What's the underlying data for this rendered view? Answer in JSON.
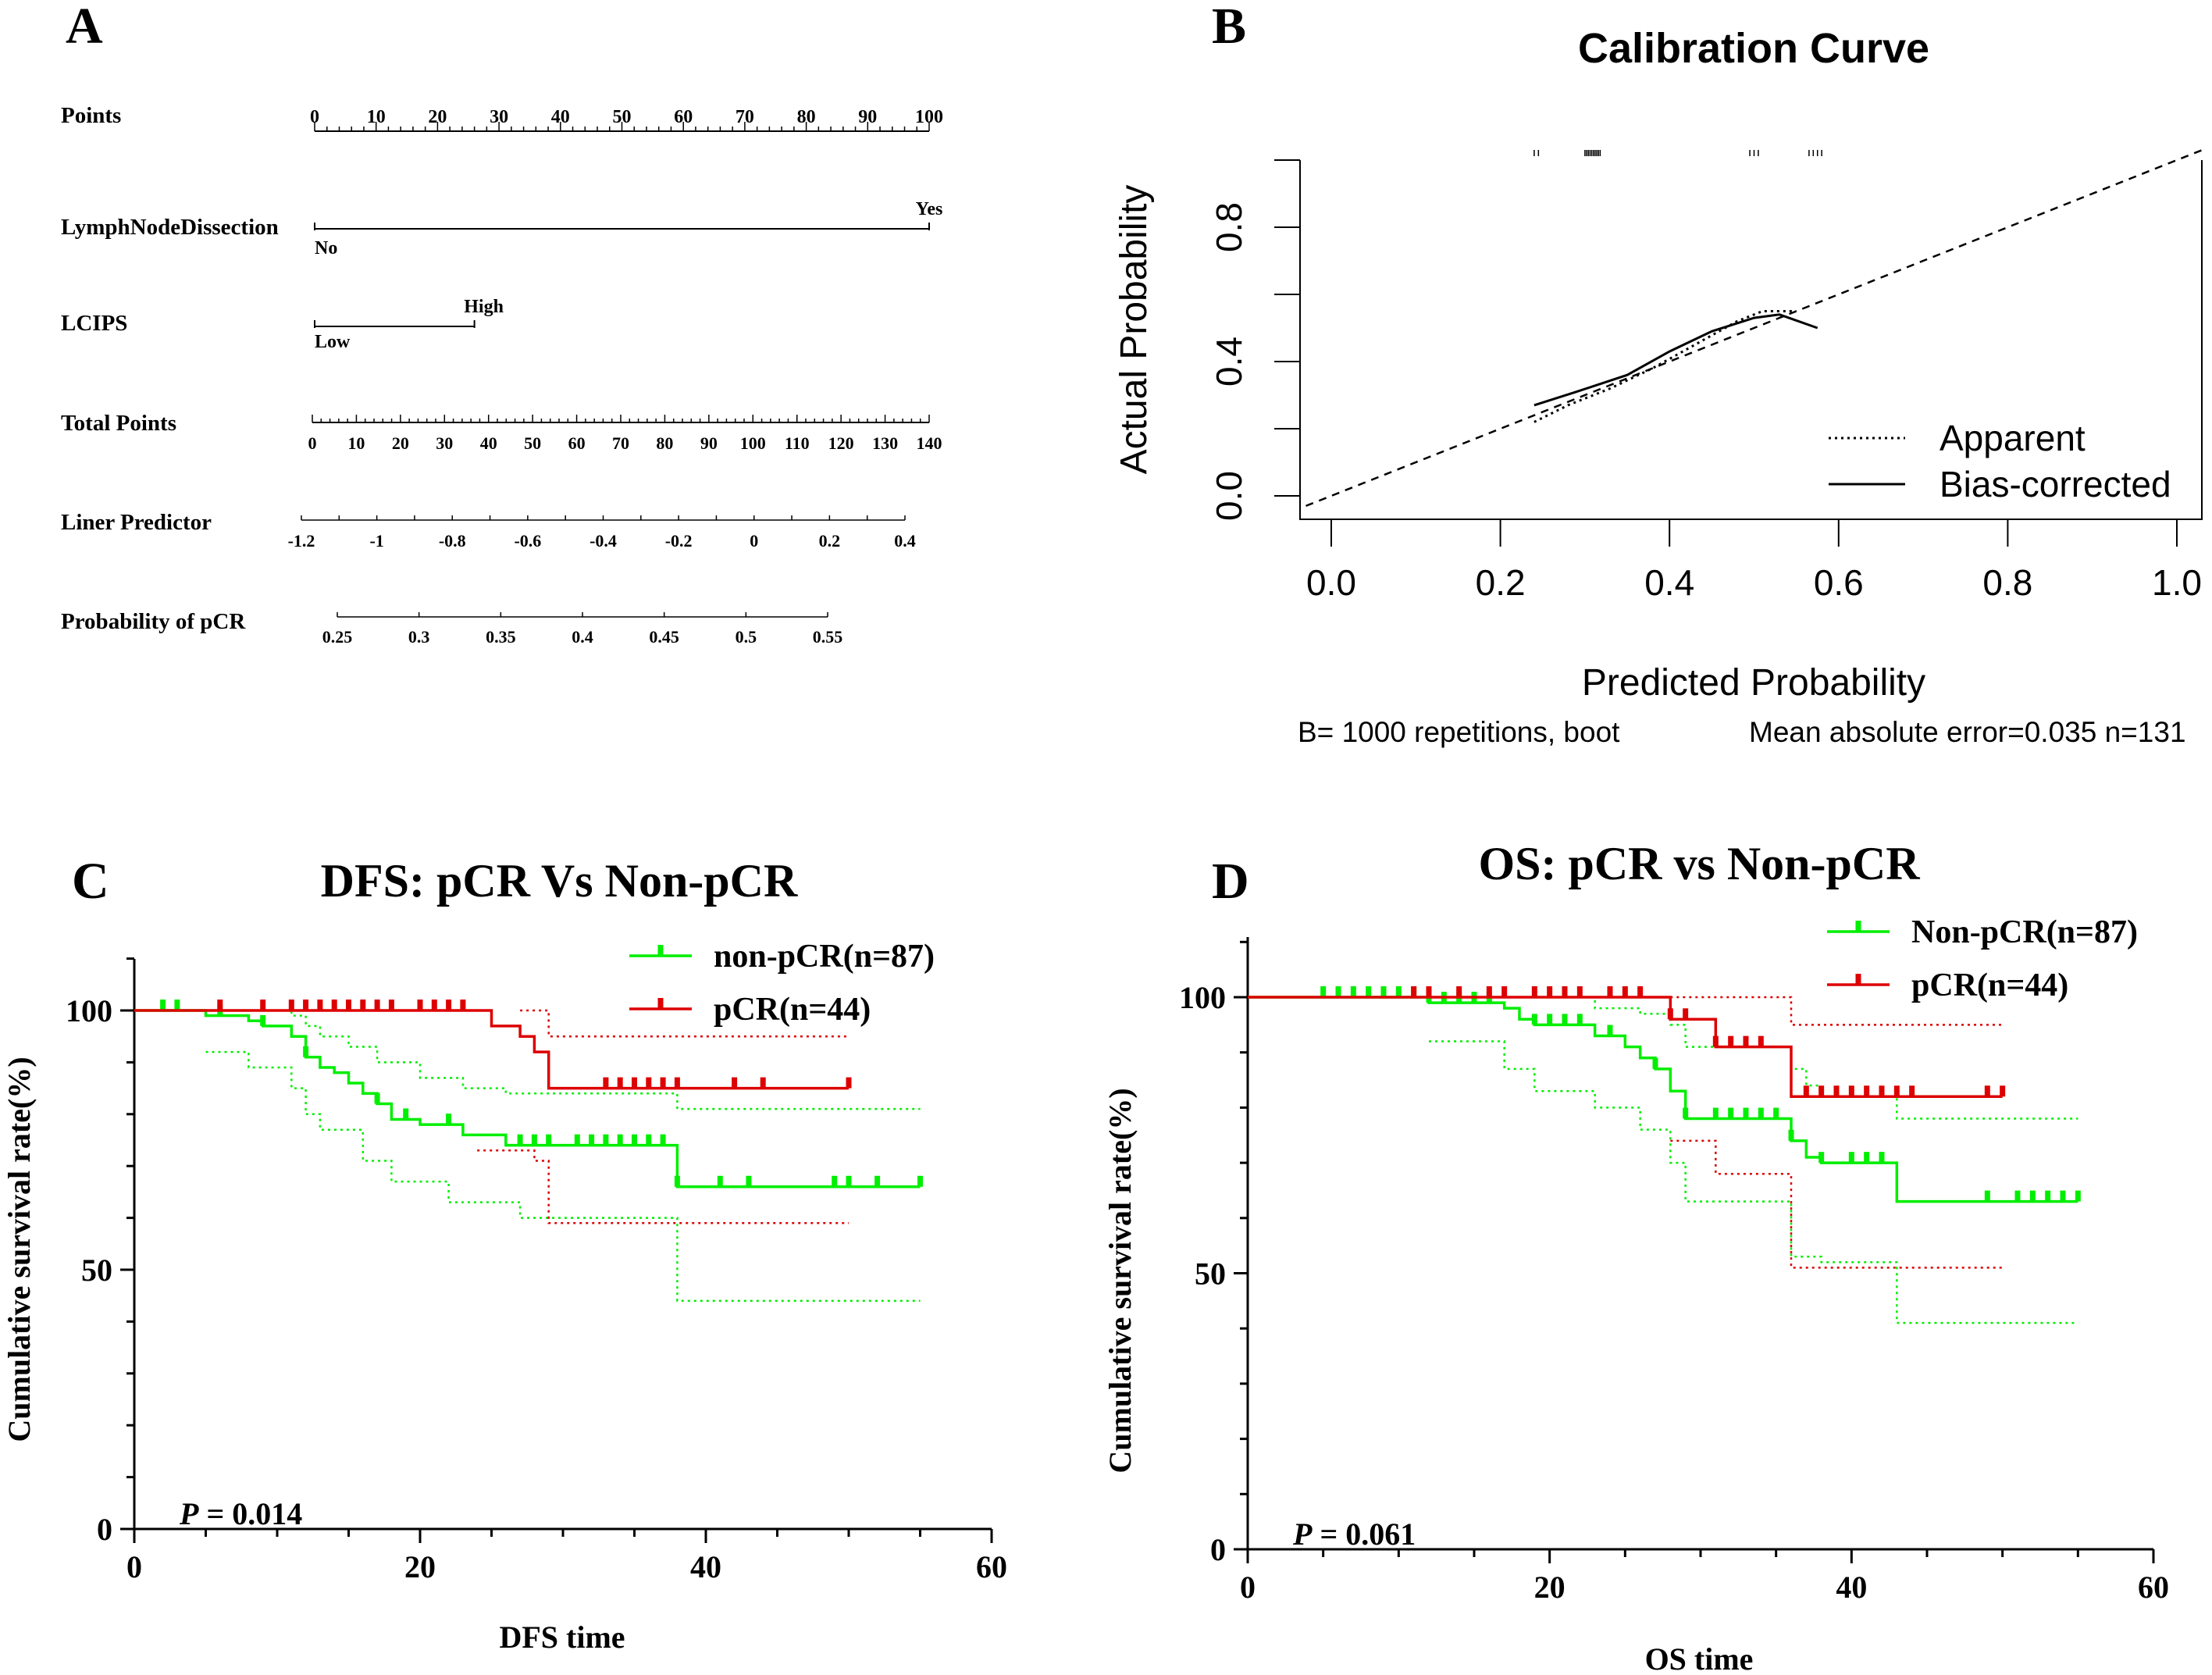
{
  "panels": {
    "A": {
      "letter": "A"
    },
    "B": {
      "letter": "B"
    },
    "C": {
      "letter": "C"
    },
    "D": {
      "letter": "D"
    }
  },
  "chart_data": [
    {
      "id": "A",
      "type": "nomogram",
      "rows": [
        {
          "label": "Points",
          "scale": "points",
          "ticks": [
            "0",
            "10",
            "20",
            "30",
            "40",
            "50",
            "60",
            "70",
            "80",
            "90",
            "100"
          ]
        },
        {
          "label": "LymphNodeDissection",
          "levels": [
            {
              "text": "No",
              "points": 0
            },
            {
              "text": "Yes",
              "points": 100
            }
          ]
        },
        {
          "label": "LCIPS",
          "levels": [
            {
              "text": "Low",
              "points": 0
            },
            {
              "text": "High",
              "points": 26
            }
          ]
        },
        {
          "label": "Total Points",
          "scale": "total",
          "ticks": [
            "0",
            "10",
            "20",
            "30",
            "40",
            "50",
            "60",
            "70",
            "80",
            "90",
            "100",
            "110",
            "120",
            "130",
            "140"
          ]
        },
        {
          "label": "Liner Predictor",
          "ticks": [
            "-1.2",
            "-1",
            "-0.8",
            "-0.6",
            "-0.4",
            "-0.2",
            "0",
            "0.2",
            "0.4"
          ],
          "tick_values": [
            -1.2,
            -1,
            -0.8,
            -0.6,
            -0.4,
            -0.2,
            0,
            0.2,
            0.4
          ]
        },
        {
          "label": "Probability of pCR",
          "ticks": [
            "0.25",
            "0.3",
            "0.35",
            "0.4",
            "0.45",
            "0.5",
            "0.55"
          ],
          "tick_values": [
            0.25,
            0.3,
            0.35,
            0.4,
            0.45,
            0.5,
            0.55
          ]
        }
      ]
    },
    {
      "id": "B",
      "type": "line",
      "title": "Calibration Curve",
      "xlabel": "Predicted Probability",
      "ylabel": "Actual Probability",
      "xlim": [
        0,
        1.0
      ],
      "ylim": [
        0,
        1.0
      ],
      "xticks": [
        "0.0",
        "0.2",
        "0.4",
        "0.6",
        "0.8",
        "1.0"
      ],
      "yticks": [
        "0.0",
        "0.4",
        "0.8"
      ],
      "series": [
        {
          "name": "Ideal",
          "style": "dashed",
          "x": [
            -0.03,
            1.03
          ],
          "y": [
            -0.03,
            1.03
          ]
        },
        {
          "name": "Apparent",
          "style": "dotted",
          "x": [
            0.24,
            0.28,
            0.33,
            0.38,
            0.43,
            0.48,
            0.51,
            0.55
          ],
          "y": [
            0.22,
            0.27,
            0.32,
            0.38,
            0.45,
            0.52,
            0.55,
            0.55
          ]
        },
        {
          "name": "Bias-corrected",
          "style": "solid",
          "x": [
            0.24,
            0.29,
            0.35,
            0.4,
            0.45,
            0.5,
            0.53,
            0.575
          ],
          "y": [
            0.27,
            0.31,
            0.36,
            0.43,
            0.49,
            0.53,
            0.54,
            0.5
          ]
        }
      ],
      "rug_x": [
        0.24,
        0.245,
        0.3,
        0.302,
        0.304,
        0.306,
        0.308,
        0.31,
        0.312,
        0.314,
        0.316,
        0.318,
        0.495,
        0.5,
        0.505,
        0.565,
        0.57,
        0.575,
        0.58
      ],
      "legend": [
        "Apparent",
        "Bias-corrected"
      ],
      "footnote_left": "B= 1000 repetitions, boot",
      "footnote_right": "Mean absolute error=0.035 n=131"
    },
    {
      "id": "C",
      "type": "line",
      "title": "DFS: pCR Vs Non-pCR",
      "xlabel": "DFS time",
      "ylabel": "Cumulative survival rate(%)",
      "xlim": [
        0,
        60
      ],
      "ylim": [
        0,
        100
      ],
      "xticks": [
        "0",
        "20",
        "40",
        "60"
      ],
      "yticks": [
        "0",
        "50",
        "100"
      ],
      "pvalue": "P = 0.014",
      "series": [
        {
          "name": "non-pCR(n=87)",
          "color": "#00ee00",
          "x": [
            0,
            5,
            8,
            9,
            11,
            12,
            13,
            14,
            15,
            16,
            17,
            18,
            20,
            23,
            26,
            38,
            55
          ],
          "y": [
            100,
            99,
            98,
            97,
            95,
            91,
            89,
            88,
            86,
            84,
            82,
            79,
            78,
            76,
            74,
            66,
            66
          ],
          "lower": {
            "x": [
              5,
              8,
              11,
              12,
              13,
              16,
              18,
              22,
              27,
              38,
              55
            ],
            "y": [
              92,
              89,
              85,
              80,
              77,
              71,
              67,
              63,
              60,
              44,
              44
            ]
          },
          "upper": {
            "x": [
              8,
              11,
              12,
              13,
              15,
              17,
              20,
              23,
              26,
              38,
              55
            ],
            "y": [
              100,
              99,
              97,
              95,
              93,
              90,
              87,
              85,
              84,
              81,
              81
            ]
          },
          "censors": [
            2,
            3,
            6,
            9,
            12,
            17,
            19,
            22,
            27,
            28,
            29,
            31,
            32,
            33,
            34,
            35,
            36,
            37,
            38,
            41,
            43,
            49,
            50,
            52,
            55
          ]
        },
        {
          "name": "pCR(n=44)",
          "color": "#dd0000",
          "x": [
            0,
            24,
            25,
            27,
            28,
            29,
            50
          ],
          "y": [
            100,
            100,
            97,
            95,
            92,
            85,
            85
          ],
          "lower": {
            "x": [
              24,
              28,
              29,
              50
            ],
            "y": [
              73,
              71,
              59,
              59
            ]
          },
          "upper": {
            "x": [
              27,
              29,
              50
            ],
            "y": [
              100,
              95,
              95
            ]
          },
          "censors": [
            6,
            9,
            11,
            12,
            13,
            14,
            15,
            16,
            17,
            18,
            20,
            21,
            22,
            23,
            33,
            34,
            35,
            36,
            37,
            38,
            42,
            44,
            50
          ]
        }
      ]
    },
    {
      "id": "D",
      "type": "line",
      "title": "OS: pCR vs Non-pCR",
      "xlabel": "OS time",
      "ylabel": "Cumulative survival rate(%)",
      "xlim": [
        0,
        60
      ],
      "ylim": [
        0,
        100
      ],
      "xticks": [
        "0",
        "20",
        "40",
        "60"
      ],
      "yticks": [
        "0",
        "50",
        "100"
      ],
      "pvalue": "P = 0.061",
      "series": [
        {
          "name": "Non-pCR(n=87)",
          "color": "#00ee00",
          "x": [
            0,
            12,
            17,
            18,
            19,
            23,
            25,
            26,
            27,
            28,
            29,
            36,
            37,
            38,
            43,
            55
          ],
          "y": [
            100,
            99,
            98,
            96,
            95,
            93,
            91,
            89,
            87,
            83,
            78,
            74,
            71,
            70,
            63,
            63
          ],
          "lower": {
            "x": [
              12,
              17,
              19,
              23,
              26,
              28,
              29,
              36,
              38,
              43,
              55
            ],
            "y": [
              92,
              87,
              83,
              80,
              76,
              70,
              63,
              53,
              52,
              41,
              41
            ]
          },
          "upper": {
            "x": [
              17,
              23,
              26,
              28,
              29,
              36,
              37,
              38,
              43,
              55
            ],
            "y": [
              100,
              98,
              97,
              95,
              91,
              87,
              84,
              82,
              78,
              78
            ]
          },
          "censors": [
            5,
            6,
            7,
            8,
            9,
            10,
            11,
            12,
            13,
            14,
            15,
            16,
            19,
            20,
            21,
            22,
            24,
            27,
            29,
            31,
            32,
            33,
            34,
            35,
            36,
            38,
            40,
            41,
            42,
            49,
            51,
            52,
            53,
            54,
            55
          ]
        },
        {
          "name": "pCR(n=44)",
          "color": "#dd0000",
          "x": [
            0,
            28,
            31,
            36,
            50
          ],
          "y": [
            100,
            96,
            91,
            82,
            82
          ],
          "lower": {
            "x": [
              28,
              31,
              36,
              50
            ],
            "y": [
              74,
              68,
              51,
              51
            ]
          },
          "upper": {
            "x": [
              28,
              36,
              50
            ],
            "y": [
              100,
              95,
              95
            ]
          },
          "censors": [
            11,
            12,
            14,
            16,
            17,
            19,
            20,
            21,
            22,
            24,
            25,
            26,
            28,
            29,
            31,
            32,
            33,
            34,
            37,
            38,
            39,
            40,
            41,
            42,
            43,
            44,
            49,
            50
          ]
        }
      ]
    }
  ]
}
